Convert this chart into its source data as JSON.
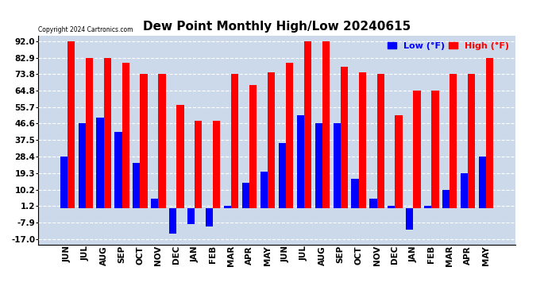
{
  "title": "Dew Point Monthly High/Low 20240615",
  "copyright": "Copyright 2024 Cartronics.com",
  "legend_low": "Low (°F)",
  "legend_high": "High (°F)",
  "months": [
    "JUN",
    "JUL",
    "AUG",
    "SEP",
    "OCT",
    "NOV",
    "DEC",
    "JAN",
    "FEB",
    "MAR",
    "APR",
    "MAY",
    "JUN",
    "JUL",
    "AUG",
    "SEP",
    "OCT",
    "NOV",
    "DEC",
    "JAN",
    "FEB",
    "MAR",
    "APR",
    "MAY"
  ],
  "high_values": [
    92.0,
    82.9,
    82.9,
    80.0,
    73.8,
    73.8,
    57.0,
    48.0,
    48.0,
    73.8,
    68.0,
    75.0,
    80.0,
    92.0,
    92.0,
    78.0,
    75.0,
    73.8,
    51.0,
    64.8,
    64.8,
    73.8,
    73.8,
    82.9
  ],
  "low_values": [
    28.4,
    46.6,
    50.0,
    42.0,
    25.0,
    5.0,
    -14.0,
    -9.0,
    -10.0,
    1.2,
    14.0,
    20.0,
    36.0,
    51.0,
    46.6,
    46.6,
    16.0,
    5.0,
    1.2,
    -12.0,
    1.2,
    10.2,
    19.3,
    28.4
  ],
  "bar_color_high": "#ff0000",
  "bar_color_low": "#0000ff",
  "background_color": "#ffffff",
  "plot_bg_color": "#ccd9ea",
  "grid_color": "#ffffff",
  "yticks": [
    92.0,
    82.9,
    73.8,
    64.8,
    55.7,
    46.6,
    37.5,
    28.4,
    19.3,
    10.2,
    1.2,
    -7.9,
    -17.0
  ],
  "ylim": [
    -20,
    95
  ],
  "title_fontsize": 11,
  "tick_fontsize": 7.5,
  "label_fontsize": 8
}
